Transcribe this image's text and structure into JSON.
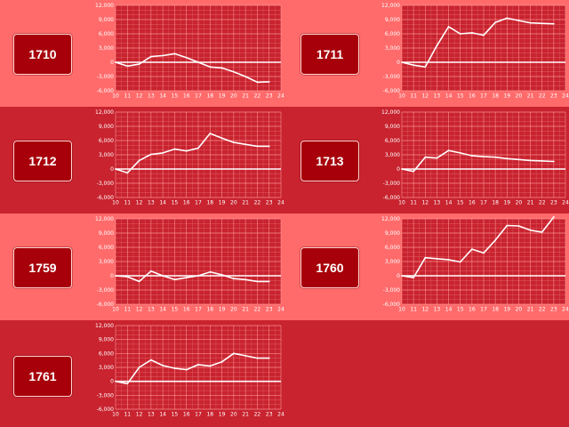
{
  "colors": {
    "row_light": "#ff6b6b",
    "row_dark": "#c8232f",
    "button_fill": "#a7000a",
    "plot_fill": "#c8232f",
    "grid": "#ff9a9a",
    "zero_line": "#ffffff",
    "series_line": "#ffffff"
  },
  "chart_data": [
    {
      "type": "line",
      "id_label": "1710",
      "x": [
        10,
        11,
        12,
        13,
        14,
        15,
        16,
        17,
        18,
        19,
        20,
        21,
        22,
        23
      ],
      "y": [
        0,
        -800,
        -400,
        1200,
        1400,
        1800,
        1000,
        0,
        -1000,
        -1200,
        -2000,
        -3000,
        -4200,
        -4100
      ],
      "xticks": [
        "10",
        "11",
        "12",
        "13",
        "14",
        "15",
        "16",
        "17",
        "18",
        "19",
        "20",
        "21",
        "22",
        "23",
        "24"
      ],
      "yticks": [
        "12,000",
        "9,000",
        "6,000",
        "3,000",
        "0",
        "-3,000",
        "-6,000"
      ],
      "xlim": [
        10,
        24
      ],
      "ylim": [
        -6000,
        12000
      ],
      "grid": true
    },
    {
      "type": "line",
      "id_label": "1711",
      "x": [
        10,
        11,
        12,
        13,
        14,
        15,
        16,
        17,
        18,
        19,
        20,
        21,
        22,
        23
      ],
      "y": [
        0,
        -600,
        -1000,
        3500,
        7500,
        6000,
        6200,
        5700,
        8400,
        9300,
        8800,
        8300,
        8200,
        8100
      ],
      "xticks": [
        "10",
        "11",
        "12",
        "13",
        "14",
        "15",
        "16",
        "17",
        "18",
        "19",
        "20",
        "21",
        "22",
        "23",
        "24"
      ],
      "yticks": [
        "12,000",
        "9,000",
        "6,000",
        "3,000",
        "0",
        "-3,000",
        "-6,000"
      ],
      "xlim": [
        10,
        24
      ],
      "ylim": [
        -6000,
        12000
      ],
      "grid": true
    },
    {
      "type": "line",
      "id_label": "1712",
      "x": [
        10,
        11,
        12,
        13,
        14,
        15,
        16,
        17,
        18,
        19,
        20,
        21,
        22,
        23
      ],
      "y": [
        0,
        -800,
        1800,
        3100,
        3400,
        4200,
        3800,
        4400,
        7500,
        6500,
        5600,
        5200,
        4800,
        4800
      ],
      "xticks": [
        "10",
        "11",
        "12",
        "13",
        "14",
        "15",
        "16",
        "17",
        "18",
        "19",
        "20",
        "21",
        "22",
        "23",
        "24"
      ],
      "yticks": [
        "12,000",
        "9,000",
        "6,000",
        "3,000",
        "0",
        "-3,000",
        "-6,000"
      ],
      "xlim": [
        10,
        24
      ],
      "ylim": [
        -6000,
        12000
      ],
      "grid": true
    },
    {
      "type": "line",
      "id_label": "1713",
      "x": [
        10,
        11,
        12,
        13,
        14,
        15,
        16,
        17,
        18,
        19,
        20,
        21,
        22,
        23
      ],
      "y": [
        0,
        -500,
        2500,
        2300,
        3900,
        3400,
        2800,
        2600,
        2500,
        2200,
        2000,
        1800,
        1700,
        1600
      ],
      "xticks": [
        "10",
        "11",
        "12",
        "13",
        "14",
        "15",
        "16",
        "17",
        "18",
        "19",
        "20",
        "21",
        "22",
        "23",
        "24"
      ],
      "yticks": [
        "12,000",
        "9,000",
        "6,000",
        "3,000",
        "0",
        "-3,000",
        "-6,000"
      ],
      "xlim": [
        10,
        24
      ],
      "ylim": [
        -6000,
        12000
      ],
      "grid": true
    },
    {
      "type": "line",
      "id_label": "1759",
      "x": [
        10,
        11,
        12,
        13,
        14,
        15,
        16,
        17,
        18,
        19,
        20,
        21,
        22,
        23
      ],
      "y": [
        0,
        -200,
        -1200,
        1000,
        0,
        -800,
        -400,
        0,
        800,
        200,
        -600,
        -800,
        -1200,
        -1200
      ],
      "xticks": [
        "10",
        "11",
        "12",
        "13",
        "14",
        "15",
        "16",
        "17",
        "18",
        "19",
        "20",
        "21",
        "22",
        "23",
        "24"
      ],
      "yticks": [
        "12,000",
        "9,000",
        "6,000",
        "3,000",
        "0",
        "-3,000",
        "-6,000"
      ],
      "xlim": [
        10,
        24
      ],
      "ylim": [
        -6000,
        12000
      ],
      "grid": true
    },
    {
      "type": "line",
      "id_label": "1760",
      "x": [
        10,
        11,
        12,
        13,
        14,
        15,
        16,
        17,
        18,
        19,
        20,
        21,
        22,
        23
      ],
      "y": [
        0,
        -400,
        3800,
        3600,
        3400,
        2900,
        5600,
        4800,
        7500,
        10600,
        10500,
        9600,
        9200,
        12400
      ],
      "xticks": [
        "10",
        "11",
        "12",
        "13",
        "14",
        "15",
        "16",
        "17",
        "18",
        "19",
        "20",
        "21",
        "22",
        "23",
        "24"
      ],
      "yticks": [
        "12,000",
        "9,000",
        "6,000",
        "3,000",
        "0",
        "-3,000",
        "-6,000"
      ],
      "xlim": [
        10,
        24
      ],
      "ylim": [
        -6000,
        12000
      ],
      "grid": true
    },
    {
      "type": "line",
      "id_label": "1761",
      "x": [
        10,
        11,
        12,
        13,
        14,
        15,
        16,
        17,
        18,
        19,
        20,
        21,
        22,
        23
      ],
      "y": [
        0,
        -500,
        3000,
        4600,
        3400,
        2800,
        2500,
        3600,
        3300,
        4200,
        6000,
        5500,
        5000,
        5000
      ],
      "xticks": [
        "10",
        "11",
        "12",
        "13",
        "14",
        "15",
        "16",
        "17",
        "18",
        "19",
        "20",
        "21",
        "22",
        "23",
        "24"
      ],
      "yticks": [
        "12,000",
        "9,000",
        "6,000",
        "3,000",
        "0",
        "-3,000",
        "-6,000"
      ],
      "xlim": [
        10,
        24
      ],
      "ylim": [
        -6000,
        12000
      ],
      "grid": true
    }
  ]
}
